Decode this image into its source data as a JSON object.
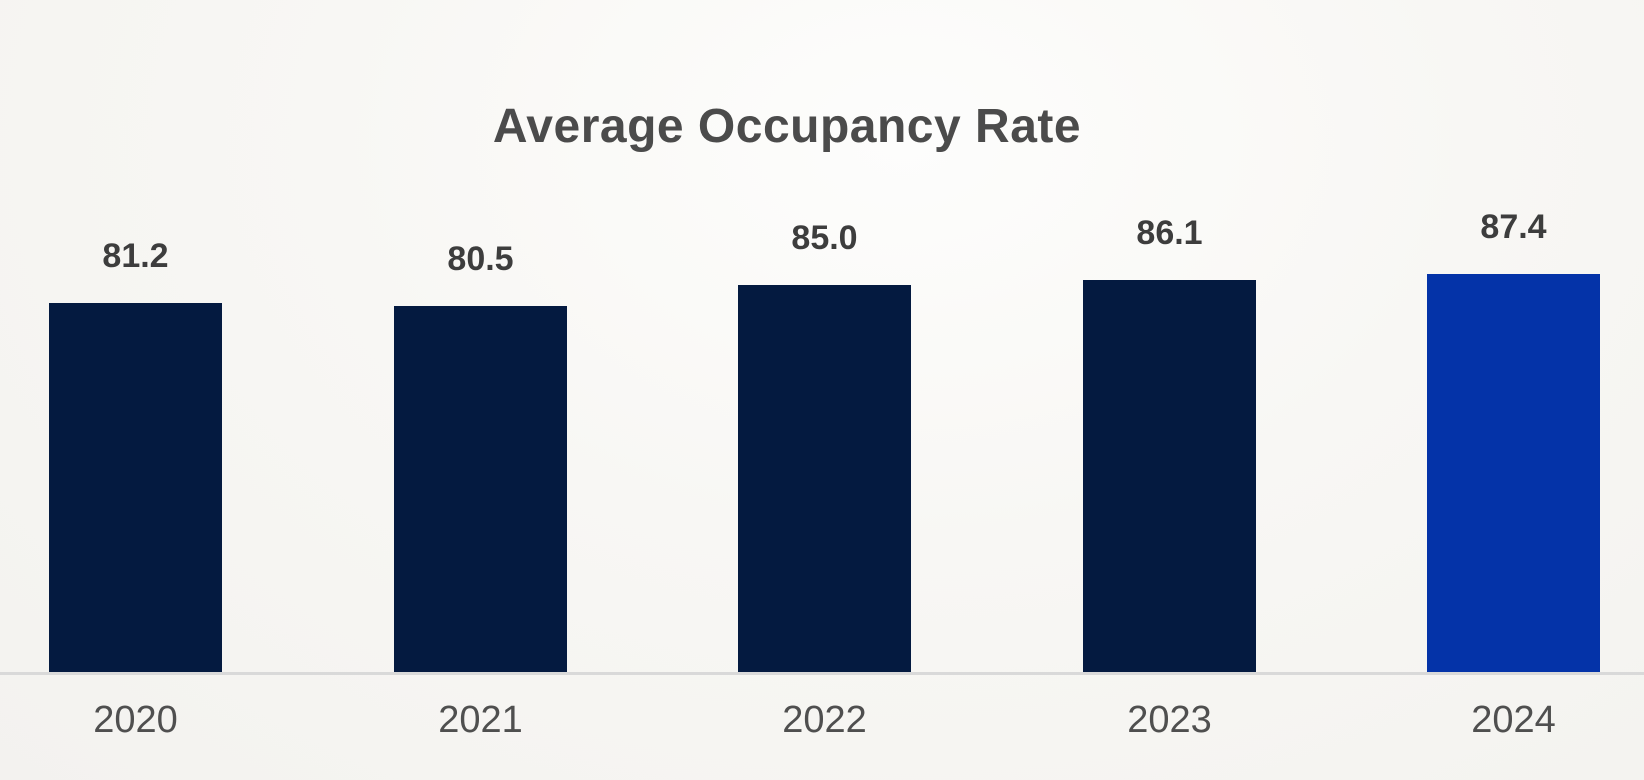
{
  "title": "Average Occupancy Rate",
  "colors": {
    "bar_default": "#041a40",
    "bar_highlight": "#0433a8",
    "title_text": "#4b4b4b",
    "value_text": "#3d3d3d",
    "year_text": "#4f4f4f",
    "axis_line": "#d9d9d9",
    "background": "#f6f5f2"
  },
  "chart_data": {
    "type": "bar",
    "title": "Average Occupancy Rate",
    "categories": [
      "2020",
      "2021",
      "2022",
      "2023",
      "2024"
    ],
    "values": [
      81.2,
      80.5,
      85.0,
      86.1,
      87.4
    ],
    "value_labels": [
      "81.2",
      "80.5",
      "85.0",
      "86.1",
      "87.4"
    ],
    "xlabel": "",
    "ylabel": "",
    "ylim": [
      0,
      100
    ],
    "grid": false,
    "legend": false,
    "highlight_index": 4,
    "baseline_visible": true
  }
}
